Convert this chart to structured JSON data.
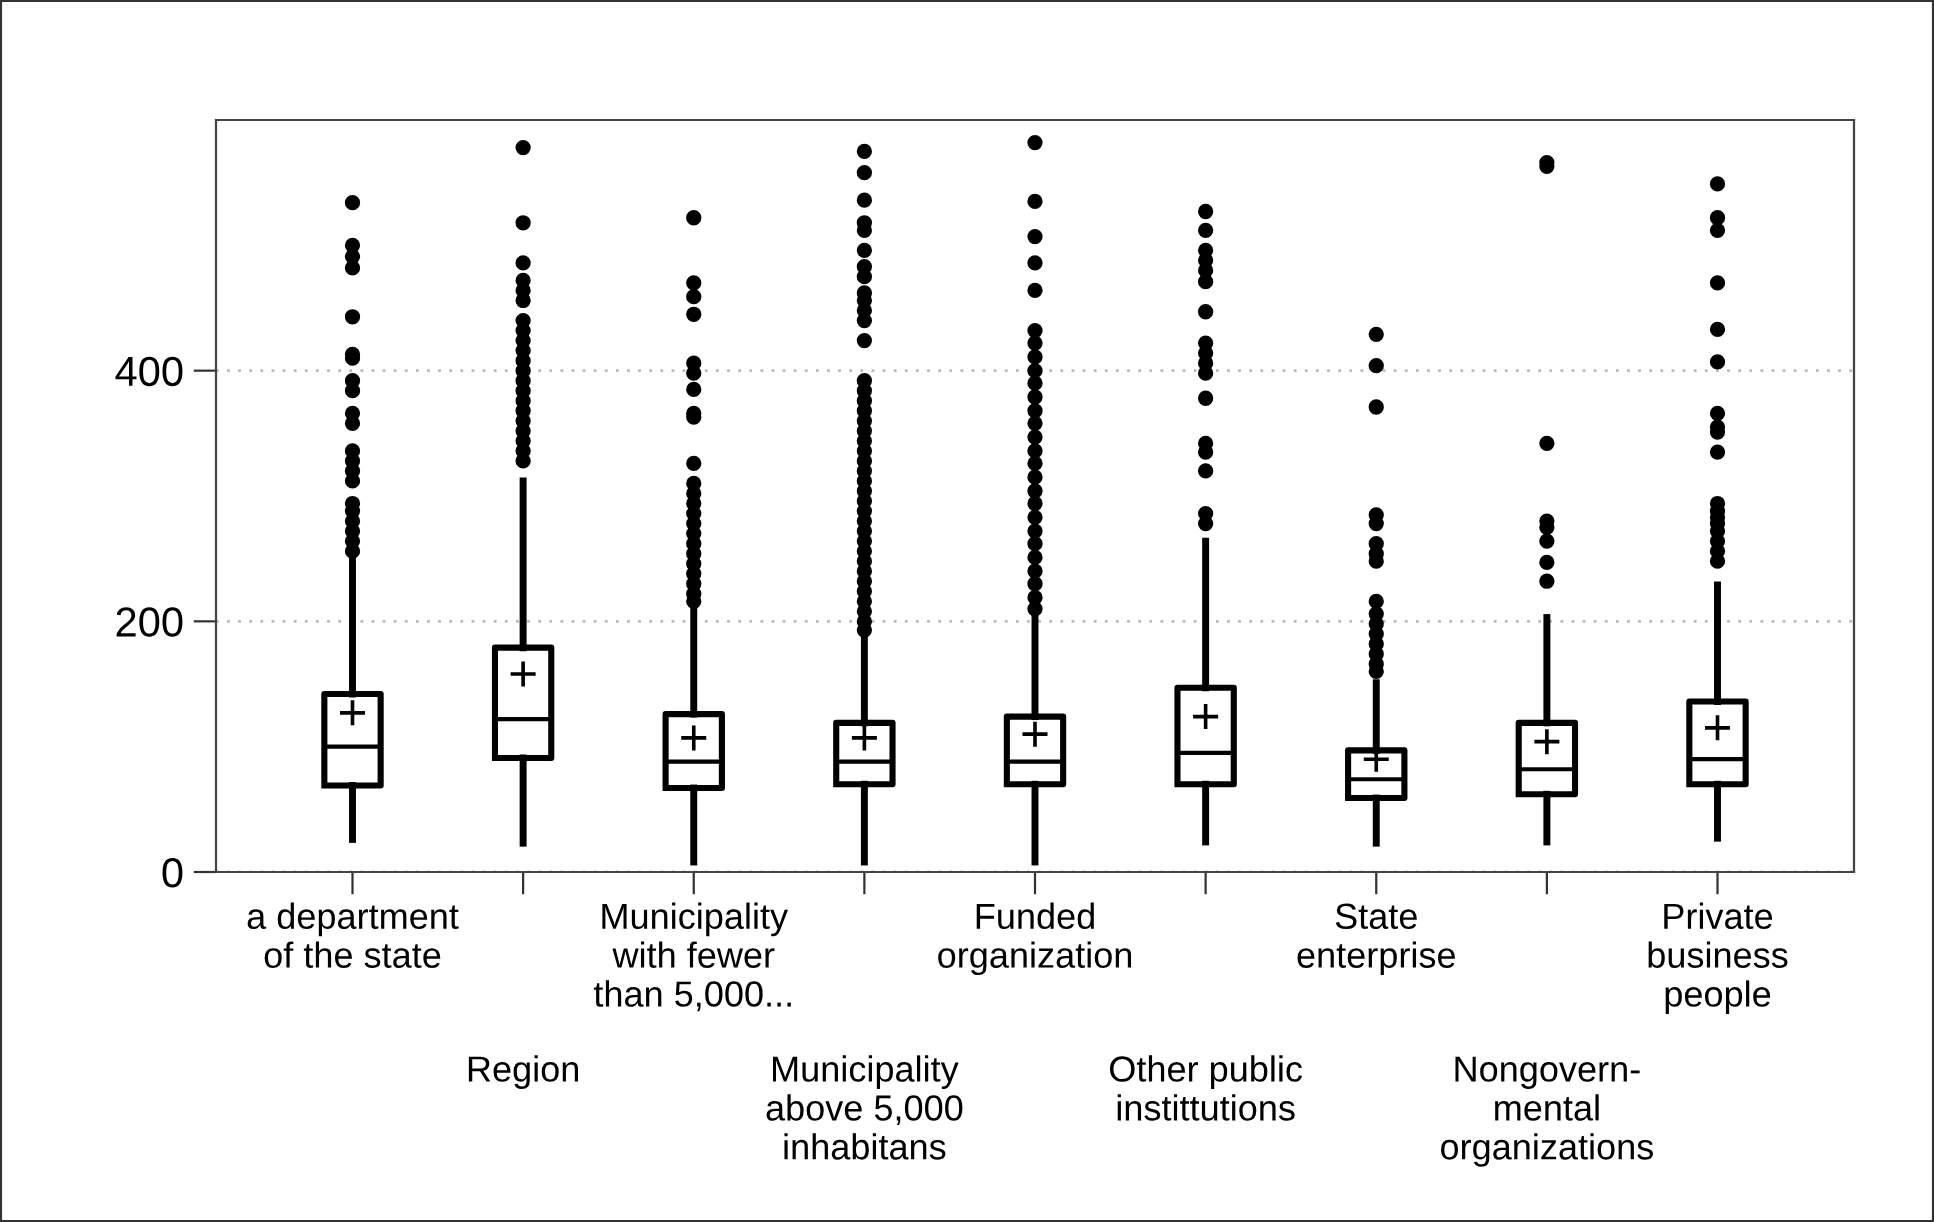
{
  "chart_data": {
    "type": "box",
    "categories": [
      "a department\nof the state",
      "Region",
      "Municipality\nwith fewer\nthan 5,000...",
      "Municipality\nabove 5,000\ninhabitans",
      "Funded\norganization",
      "Other public\ninstittutions",
      "State\nenterprise",
      "Nongovern-\nmental\norganizations",
      "Private\nbusiness\npeople"
    ],
    "boxes": [
      {
        "low": 26,
        "q1": 69,
        "median": 100,
        "q3": 142,
        "high": 250,
        "mean": 127,
        "outliers": [
          534,
          500,
          491,
          482,
          443,
          413,
          410,
          392,
          384,
          366,
          358,
          336,
          328,
          320,
          312,
          294,
          288,
          280,
          272,
          264,
          256
        ]
      },
      {
        "low": 23,
        "q1": 91,
        "median": 122,
        "q3": 179,
        "high": 312,
        "mean": 158,
        "outliers": [
          578,
          518,
          486,
          472,
          464,
          456,
          440,
          432,
          424,
          416,
          408,
          400,
          392,
          384,
          376,
          368,
          360,
          352,
          344,
          336,
          328
        ]
      },
      {
        "low": 8,
        "q1": 67,
        "median": 88,
        "q3": 126,
        "high": 211,
        "mean": 107,
        "outliers": [
          522,
          470,
          459,
          445,
          406,
          398,
          385,
          366,
          363,
          326,
          310,
          302,
          294,
          286,
          278,
          270,
          262,
          254,
          246,
          238,
          230,
          222,
          216
        ]
      },
      {
        "low": 8,
        "q1": 70,
        "median": 88,
        "q3": 119,
        "high": 190,
        "mean": 107,
        "outliers": [
          575,
          558,
          536,
          518,
          512,
          496,
          483,
          475,
          462,
          456,
          448,
          440,
          424,
          392,
          384,
          376,
          368,
          360,
          352,
          344,
          336,
          328,
          320,
          312,
          304,
          296,
          288,
          280,
          272,
          264,
          256,
          248,
          240,
          232,
          224,
          216,
          208,
          200,
          193
        ]
      },
      {
        "low": 8,
        "q1": 70,
        "median": 88,
        "q3": 124,
        "high": 205,
        "mean": 110,
        "outliers": [
          582,
          535,
          507,
          486,
          464,
          432,
          422,
          411,
          400,
          390,
          379,
          368,
          358,
          347,
          336,
          326,
          315,
          304,
          294,
          283,
          272,
          262,
          251,
          240,
          230,
          219,
          210
        ]
      },
      {
        "low": 24,
        "q1": 70,
        "median": 95,
        "q3": 147,
        "high": 264,
        "mean": 124,
        "outliers": [
          527,
          512,
          496,
          488,
          480,
          471,
          447,
          422,
          414,
          406,
          398,
          378,
          342,
          335,
          320,
          286,
          278
        ]
      },
      {
        "low": 23,
        "q1": 59,
        "median": 74,
        "q3": 97,
        "high": 151,
        "mean": 90,
        "outliers": [
          429,
          404,
          371,
          285,
          278,
          262,
          254,
          248,
          216,
          206,
          198,
          190,
          182,
          174,
          166,
          160
        ]
      },
      {
        "low": 24,
        "q1": 62,
        "median": 82,
        "q3": 119,
        "high": 203,
        "mean": 104,
        "outliers": [
          566,
          563,
          342,
          280,
          275,
          264,
          247,
          232
        ]
      },
      {
        "low": 27,
        "q1": 70,
        "median": 90,
        "q3": 136,
        "high": 229,
        "mean": 115,
        "outliers": [
          549,
          522,
          512,
          470,
          433,
          407,
          366,
          355,
          351,
          335,
          294,
          288,
          283,
          278,
          272,
          264,
          256,
          248
        ]
      }
    ],
    "color": "#000000",
    "ylim": [
      0,
      600
    ],
    "yticks": [
      0,
      200,
      400
    ],
    "grid": "y"
  }
}
